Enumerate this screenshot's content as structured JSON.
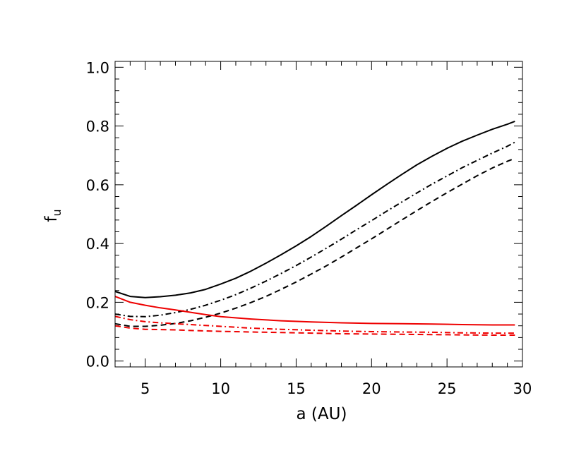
{
  "chart_data": {
    "type": "line",
    "title": "",
    "xlabel": "a (AU)",
    "ylabel_base": "f",
    "ylabel_sub": "u",
    "xlim": [
      3,
      30
    ],
    "ylim": [
      -0.02,
      1.02
    ],
    "xticks": [
      5,
      10,
      15,
      20,
      25,
      30
    ],
    "xtick_labels": [
      "5",
      "10",
      "15",
      "20",
      "25",
      "30"
    ],
    "yticks": [
      0.0,
      0.2,
      0.4,
      0.6,
      0.8,
      1.0
    ],
    "ytick_labels": [
      "0.0",
      "0.2",
      "0.4",
      "0.6",
      "0.8",
      "1.0"
    ],
    "grid": false,
    "legend": "none",
    "series": [
      {
        "color": "#000000",
        "style": "solid",
        "x": [
          3,
          4,
          5,
          6,
          7,
          8,
          9,
          10,
          11,
          12,
          13,
          14,
          15,
          16,
          17,
          18,
          19,
          20,
          21,
          22,
          23,
          24,
          25,
          26,
          27,
          28,
          29,
          29.5
        ],
        "y": [
          0.237,
          0.22,
          0.216,
          0.219,
          0.224,
          0.232,
          0.244,
          0.262,
          0.282,
          0.306,
          0.333,
          0.362,
          0.392,
          0.424,
          0.459,
          0.495,
          0.53,
          0.566,
          0.601,
          0.635,
          0.668,
          0.697,
          0.724,
          0.748,
          0.769,
          0.789,
          0.806,
          0.816
        ]
      },
      {
        "color": "#000000",
        "style": "dashdot",
        "x": [
          3,
          4,
          5,
          6,
          7,
          8,
          9,
          10,
          11,
          12,
          13,
          14,
          15,
          16,
          17,
          18,
          19,
          20,
          21,
          22,
          23,
          24,
          25,
          26,
          27,
          28,
          29,
          29.5
        ],
        "y": [
          0.16,
          0.152,
          0.151,
          0.156,
          0.165,
          0.176,
          0.19,
          0.207,
          0.226,
          0.248,
          0.272,
          0.298,
          0.325,
          0.354,
          0.384,
          0.415,
          0.447,
          0.478,
          0.51,
          0.541,
          0.572,
          0.602,
          0.63,
          0.658,
          0.683,
          0.708,
          0.731,
          0.745
        ]
      },
      {
        "color": "#000000",
        "style": "dashed",
        "x": [
          3,
          4,
          5,
          6,
          7,
          8,
          9,
          10,
          11,
          12,
          13,
          14,
          15,
          16,
          17,
          18,
          19,
          20,
          21,
          22,
          23,
          24,
          25,
          26,
          27,
          28,
          29,
          29.5
        ],
        "y": [
          0.127,
          0.118,
          0.118,
          0.122,
          0.128,
          0.137,
          0.149,
          0.163,
          0.18,
          0.199,
          0.22,
          0.244,
          0.269,
          0.296,
          0.324,
          0.354,
          0.385,
          0.416,
          0.448,
          0.48,
          0.512,
          0.543,
          0.573,
          0.602,
          0.631,
          0.657,
          0.68,
          0.69
        ]
      },
      {
        "color": "#ee0000",
        "style": "solid",
        "x": [
          3,
          4,
          5,
          6,
          7,
          8,
          9,
          10,
          12,
          14,
          16,
          18,
          20,
          22,
          24,
          26,
          28,
          29.5
        ],
        "y": [
          0.22,
          0.2,
          0.19,
          0.181,
          0.174,
          0.166,
          0.158,
          0.151,
          0.143,
          0.137,
          0.133,
          0.13,
          0.128,
          0.127,
          0.126,
          0.124,
          0.123,
          0.123
        ]
      },
      {
        "color": "#ee0000",
        "style": "dashdot",
        "x": [
          3,
          4,
          5,
          6,
          7,
          8,
          10,
          12,
          14,
          16,
          18,
          20,
          22,
          24,
          26,
          28,
          29.5
        ],
        "y": [
          0.152,
          0.141,
          0.134,
          0.13,
          0.127,
          0.124,
          0.118,
          0.112,
          0.108,
          0.105,
          0.102,
          0.1,
          0.099,
          0.098,
          0.096,
          0.095,
          0.095
        ]
      },
      {
        "color": "#ee0000",
        "style": "dashed",
        "x": [
          3,
          4,
          5,
          6,
          7,
          8,
          10,
          12,
          14,
          16,
          18,
          20,
          22,
          24,
          26,
          28,
          29.5
        ],
        "y": [
          0.12,
          0.112,
          0.108,
          0.107,
          0.106,
          0.104,
          0.101,
          0.099,
          0.097,
          0.095,
          0.093,
          0.092,
          0.091,
          0.09,
          0.089,
          0.088,
          0.088
        ]
      }
    ]
  }
}
